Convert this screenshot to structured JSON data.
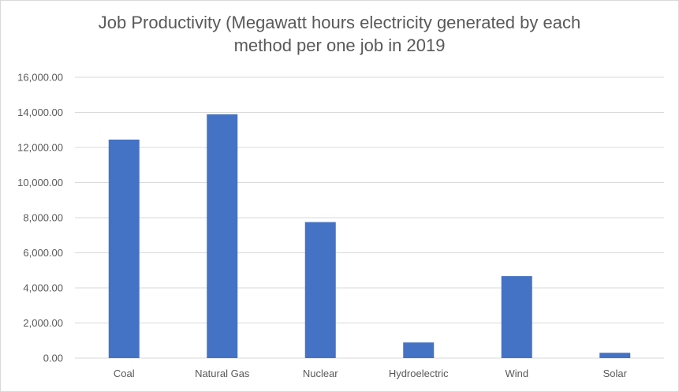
{
  "chart_data": {
    "type": "bar",
    "title_line1": "Job Productivity (Megawatt hours electricity generated by each",
    "title_line2": "method per one job in 2019",
    "categories": [
      "Coal",
      "Natural Gas",
      "Nuclear",
      "Hydroelectric",
      "Wind",
      "Solar"
    ],
    "values": [
      12450,
      13890,
      7750,
      890,
      4670,
      300
    ],
    "ylim": [
      0,
      16000
    ],
    "yticks": [
      0,
      2000,
      4000,
      6000,
      8000,
      10000,
      12000,
      14000,
      16000
    ],
    "ytick_labels": [
      "0.00",
      "2,000.00",
      "4,000.00",
      "6,000.00",
      "8,000.00",
      "10,000.00",
      "12,000.00",
      "14,000.00",
      "16,000.00"
    ],
    "xlabel": "",
    "ylabel": "",
    "grid": true,
    "bar_color": "#4472C4",
    "grid_color": "#d9d9d9"
  }
}
